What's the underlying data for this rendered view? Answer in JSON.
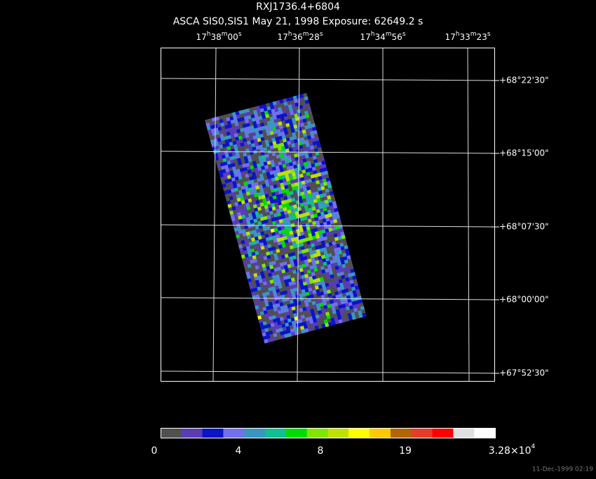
{
  "header": {
    "title": "RXJ1736.4+6804",
    "subtitle": "ASCA SIS0,SIS1 May 21, 1998 Exposure: 62649.2 s"
  },
  "ra_labels": [
    [
      "17",
      "h",
      "38",
      "m",
      "00",
      "s"
    ],
    [
      "17",
      "h",
      "36",
      "m",
      "28",
      "s"
    ],
    [
      "17",
      "h",
      "34",
      "m",
      "56",
      "s"
    ],
    [
      "17",
      "h",
      "33",
      "m",
      "23",
      "s"
    ]
  ],
  "dec_labels": [
    "+68°22'30\"",
    "+68°15'00\"",
    "+68°07'30\"",
    "+68°00'00\"",
    "+67°52'30\""
  ],
  "colorbar": {
    "colors": [
      "#505050",
      "#5a3cb4",
      "#0a14c8",
      "#7070f0",
      "#3a96c0",
      "#10c090",
      "#00dc00",
      "#80e600",
      "#c0e000",
      "#ffff00",
      "#ffc800",
      "#b46400",
      "#e63c28",
      "#ff0000",
      "#e0e0e0",
      "#ffffff"
    ],
    "labels": [
      [
        "0"
      ],
      [
        "4"
      ],
      [
        "8"
      ],
      [
        "19"
      ],
      [
        "3.28×10",
        "4"
      ]
    ]
  },
  "timestamp": "11-Dec-1999 02:19"
}
